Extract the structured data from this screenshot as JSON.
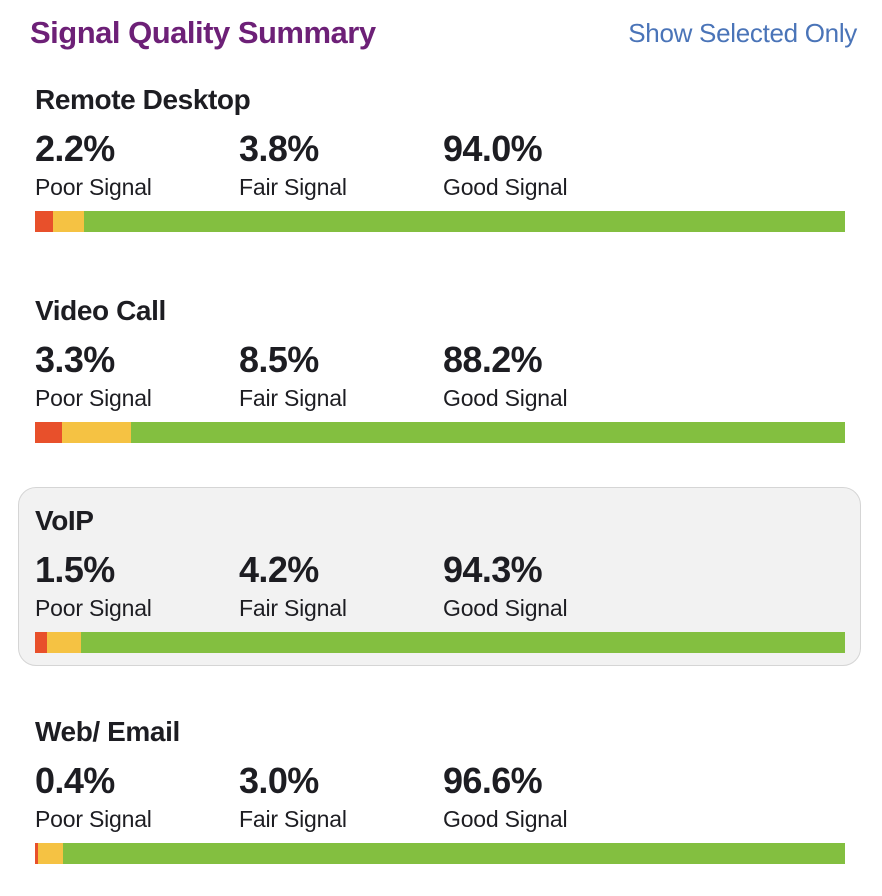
{
  "header": {
    "title": "Signal Quality Summary",
    "action_label": "Show Selected Only"
  },
  "colors": {
    "title": "#6d2077",
    "action_link": "#4a74b8",
    "poor": "#e8502b",
    "fair": "#f5c243",
    "good": "#83bf40",
    "selected_card_bg": "#f2f2f2",
    "selected_card_border": "#d5d5d5"
  },
  "chart_data": {
    "type": "bar",
    "title": "Signal Quality Summary",
    "categories": [
      "Poor Signal",
      "Fair Signal",
      "Good Signal"
    ],
    "series": [
      {
        "name": "Remote Desktop",
        "values": [
          2.2,
          3.8,
          94.0
        ]
      },
      {
        "name": "Video Call",
        "values": [
          3.3,
          8.5,
          88.2
        ]
      },
      {
        "name": "VoIP",
        "values": [
          1.5,
          4.2,
          94.3
        ]
      },
      {
        "name": "Web/ Email",
        "values": [
          0.4,
          3.0,
          96.6
        ]
      }
    ],
    "unit": "%",
    "xlim": [
      0,
      100
    ]
  },
  "sections": [
    {
      "title": "Remote Desktop",
      "selected": false,
      "stats": [
        {
          "value": "2.2%",
          "percent": 2.2,
          "label": "Poor Signal",
          "level": "poor"
        },
        {
          "value": "3.8%",
          "percent": 3.8,
          "label": "Fair Signal",
          "level": "fair"
        },
        {
          "value": "94.0%",
          "percent": 94.0,
          "label": "Good Signal",
          "level": "good"
        }
      ]
    },
    {
      "title": "Video Call",
      "selected": false,
      "stats": [
        {
          "value": "3.3%",
          "percent": 3.3,
          "label": "Poor Signal",
          "level": "poor"
        },
        {
          "value": "8.5%",
          "percent": 8.5,
          "label": "Fair Signal",
          "level": "fair"
        },
        {
          "value": "88.2%",
          "percent": 88.2,
          "label": "Good Signal",
          "level": "good"
        }
      ]
    },
    {
      "title": "VoIP",
      "selected": true,
      "stats": [
        {
          "value": "1.5%",
          "percent": 1.5,
          "label": "Poor Signal",
          "level": "poor"
        },
        {
          "value": "4.2%",
          "percent": 4.2,
          "label": "Fair Signal",
          "level": "fair"
        },
        {
          "value": "94.3%",
          "percent": 94.3,
          "label": "Good Signal",
          "level": "good"
        }
      ]
    },
    {
      "title": "Web/ Email",
      "selected": false,
      "stats": [
        {
          "value": "0.4%",
          "percent": 0.4,
          "label": "Poor Signal",
          "level": "poor"
        },
        {
          "value": "3.0%",
          "percent": 3.0,
          "label": "Fair Signal",
          "level": "fair"
        },
        {
          "value": "96.6%",
          "percent": 96.6,
          "label": "Good Signal",
          "level": "good"
        }
      ]
    }
  ]
}
